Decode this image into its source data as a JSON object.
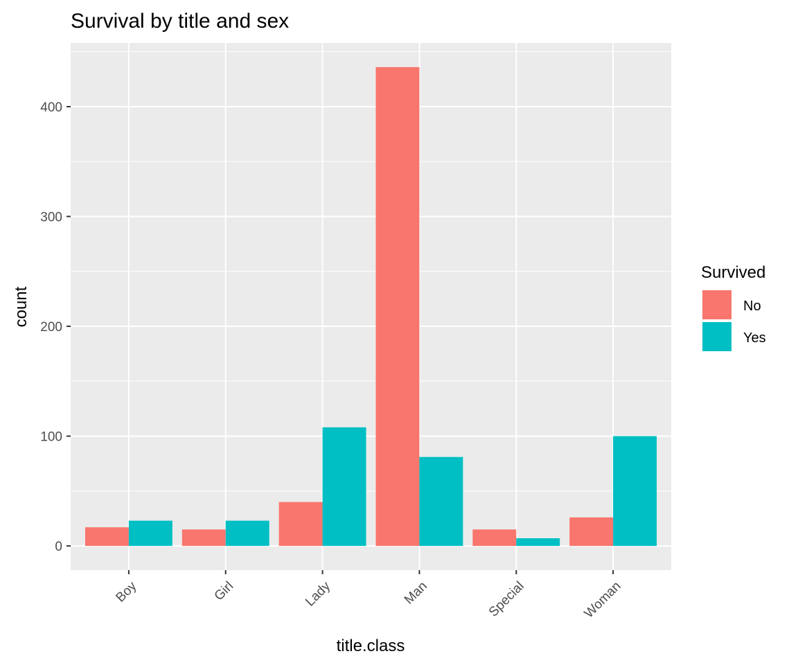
{
  "chart_data": {
    "type": "bar",
    "title": "Survival by title and sex",
    "xlabel": "title.class",
    "ylabel": "count",
    "categories": [
      "Boy",
      "Girl",
      "Lady",
      "Man",
      "Special",
      "Woman"
    ],
    "series": [
      {
        "name": "No",
        "color": "#F8766D",
        "values": [
          17,
          15,
          40,
          436,
          15,
          26
        ]
      },
      {
        "name": "Yes",
        "color": "#00BFC4",
        "values": [
          23,
          23,
          108,
          81,
          7,
          100
        ]
      }
    ],
    "yticks": [
      0,
      100,
      200,
      300,
      400
    ],
    "ylim": [
      -22,
      458
    ],
    "grid": true,
    "panel_background": "#EBEBEB",
    "legend": {
      "title": "Survived",
      "position": "right"
    }
  }
}
